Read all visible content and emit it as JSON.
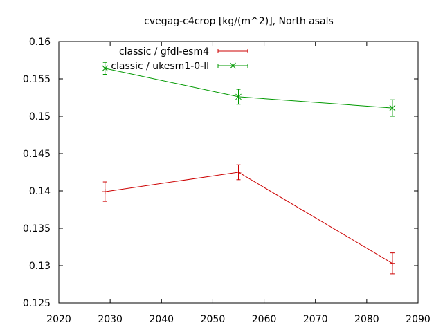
{
  "chart_data": {
    "type": "line",
    "title": "cvegag-c4crop [kg/(m^2)], North asals",
    "xlabel": "",
    "ylabel": "",
    "xlim": [
      2020,
      2090
    ],
    "ylim": [
      0.125,
      0.16
    ],
    "xticks": [
      "2020",
      "2030",
      "2040",
      "2050",
      "2060",
      "2070",
      "2080",
      "2090"
    ],
    "yticks": [
      "0.125",
      "0.13",
      "0.135",
      "0.14",
      "0.145",
      "0.15",
      "0.155",
      "0.16"
    ],
    "grid": false,
    "legend_position": "top-left",
    "series": [
      {
        "name": "classic / gfdl-esm4",
        "color": "#cc0000",
        "marker": "plus",
        "points": [
          {
            "x": 2029,
            "y": 0.1399,
            "err": 0.0013
          },
          {
            "x": 2055,
            "y": 0.1425,
            "err": 0.001
          },
          {
            "x": 2085,
            "y": 0.1303,
            "err": 0.0014
          }
        ]
      },
      {
        "name": "classic / ukesm1-0-ll",
        "color": "#009900",
        "marker": "x",
        "points": [
          {
            "x": 2029,
            "y": 0.1564,
            "err": 0.0008
          },
          {
            "x": 2055,
            "y": 0.1526,
            "err": 0.001
          },
          {
            "x": 2085,
            "y": 0.1511,
            "err": 0.0011
          }
        ]
      }
    ]
  }
}
